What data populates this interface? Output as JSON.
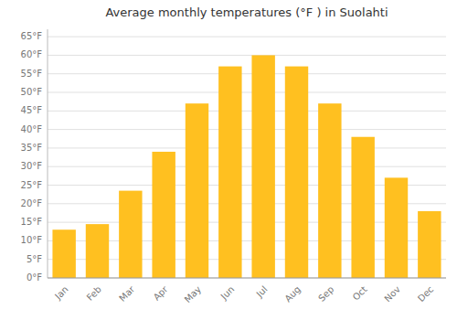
{
  "chart_data": {
    "type": "bar",
    "title": "Average monthly temperatures (°F ) in Suolahti",
    "categories": [
      "Jan",
      "Feb",
      "Mar",
      "Apr",
      "May",
      "Jun",
      "Jul",
      "Aug",
      "Sep",
      "Oct",
      "Nov",
      "Dec"
    ],
    "values": [
      13,
      14.5,
      23.5,
      34,
      47,
      57,
      60,
      57,
      47,
      38,
      27,
      18
    ],
    "color": "#FFC020",
    "ylim": [
      0,
      67
    ],
    "yticks": [
      {
        "value": 0,
        "label": "0°F"
      },
      {
        "value": 5,
        "label": "5°F"
      },
      {
        "value": 10,
        "label": "10°F"
      },
      {
        "value": 15,
        "label": "15°F"
      },
      {
        "value": 20,
        "label": "20°F"
      },
      {
        "value": 25,
        "label": "25°F"
      },
      {
        "value": 30,
        "label": "30°F"
      },
      {
        "value": 35,
        "label": "35°F"
      },
      {
        "value": 40,
        "label": "40°F"
      },
      {
        "value": 45,
        "label": "45°F"
      },
      {
        "value": 50,
        "label": "50°F"
      },
      {
        "value": 55,
        "label": "55°F"
      },
      {
        "value": 60,
        "label": "60°F"
      },
      {
        "value": 65,
        "label": "65°F"
      }
    ],
    "grid": true
  }
}
